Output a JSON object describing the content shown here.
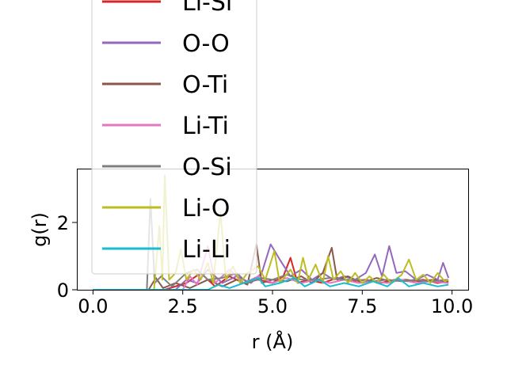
{
  "chart_data": {
    "type": "line",
    "xlabel": "r (Å)",
    "ylabel": "g(r)",
    "xlim": [
      -0.45,
      10.45
    ],
    "ylim": [
      0,
      3.6
    ],
    "x_ticks": [
      "0.0",
      "2.5",
      "5.0",
      "7.5",
      "10.0"
    ],
    "x_tick_values": [
      0,
      2.5,
      5,
      7.5,
      10
    ],
    "y_ticks": [
      "0",
      "2"
    ],
    "y_tick_values": [
      0,
      2
    ],
    "grid": false,
    "legend_position": "upper-left, overlapping plot and extending above figure",
    "legend_entries": [
      "Li-Si",
      "O-O",
      "O-Ti",
      "Li-Ti",
      "O-Si",
      "Li-O",
      "Li-Li"
    ],
    "series": [
      {
        "name": "Li-Si",
        "color": "#d62728",
        "points": [
          [
            0,
            0
          ],
          [
            1.4,
            0
          ],
          [
            2.0,
            0
          ],
          [
            2.6,
            0.2
          ],
          [
            3.0,
            0.5
          ],
          [
            3.4,
            0.1
          ],
          [
            3.8,
            0.4
          ],
          [
            4.2,
            0.2
          ],
          [
            4.6,
            0.3
          ],
          [
            5.0,
            0.2
          ],
          [
            5.3,
            0.4
          ],
          [
            5.5,
            0.95
          ],
          [
            5.7,
            0.2
          ],
          [
            6.0,
            0.3
          ],
          [
            6.4,
            0.2
          ],
          [
            6.8,
            0.35
          ],
          [
            7.2,
            0.25
          ],
          [
            7.6,
            0.3
          ],
          [
            8.0,
            0.2
          ],
          [
            8.4,
            0.3
          ],
          [
            8.8,
            0.25
          ],
          [
            9.2,
            0.3
          ],
          [
            9.6,
            0.2
          ],
          [
            9.9,
            0.25
          ]
        ]
      },
      {
        "name": "O-O",
        "color": "#9467bd",
        "points": [
          [
            0,
            0
          ],
          [
            1.8,
            0
          ],
          [
            2.3,
            0
          ],
          [
            2.6,
            0.3
          ],
          [
            2.9,
            0.2
          ],
          [
            3.2,
            0.6
          ],
          [
            3.6,
            0.2
          ],
          [
            4.0,
            0.4
          ],
          [
            4.4,
            0.2
          ],
          [
            4.7,
            0.5
          ],
          [
            4.95,
            1.35
          ],
          [
            5.2,
            0.9
          ],
          [
            5.5,
            0.4
          ],
          [
            5.8,
            0.6
          ],
          [
            6.1,
            0.3
          ],
          [
            6.4,
            0.5
          ],
          [
            6.7,
            0.3
          ],
          [
            7.0,
            0.4
          ],
          [
            7.3,
            0.3
          ],
          [
            7.6,
            0.5
          ],
          [
            7.85,
            1.05
          ],
          [
            8.05,
            0.4
          ],
          [
            8.25,
            1.3
          ],
          [
            8.45,
            0.5
          ],
          [
            8.7,
            0.55
          ],
          [
            9.0,
            0.3
          ],
          [
            9.3,
            0.45
          ],
          [
            9.6,
            0.3
          ],
          [
            9.75,
            0.8
          ],
          [
            9.9,
            0.35
          ]
        ]
      },
      {
        "name": "O-Ti",
        "color": "#8c564b",
        "points": [
          [
            0,
            0
          ],
          [
            1.55,
            0
          ],
          [
            1.75,
            0.35
          ],
          [
            1.95,
            0.05
          ],
          [
            2.3,
            0.2
          ],
          [
            2.7,
            0.05
          ],
          [
            3.2,
            0.3
          ],
          [
            3.6,
            0.1
          ],
          [
            4.0,
            0.3
          ],
          [
            4.3,
            0.15
          ],
          [
            4.55,
            1.35
          ],
          [
            4.7,
            0.2
          ],
          [
            5.0,
            0.3
          ],
          [
            5.4,
            0.25
          ],
          [
            5.8,
            0.4
          ],
          [
            6.1,
            0.2
          ],
          [
            6.4,
            0.5
          ],
          [
            6.65,
            1.25
          ],
          [
            6.8,
            0.3
          ],
          [
            7.1,
            0.4
          ],
          [
            7.5,
            0.2
          ],
          [
            7.9,
            0.35
          ],
          [
            8.3,
            0.25
          ],
          [
            8.7,
            0.3
          ],
          [
            9.1,
            0.25
          ],
          [
            9.5,
            0.3
          ],
          [
            9.9,
            0.2
          ]
        ]
      },
      {
        "name": "Li-Ti",
        "color": "#e377c2",
        "points": [
          [
            0,
            0
          ],
          [
            2.5,
            0
          ],
          [
            2.7,
            0.4
          ],
          [
            2.9,
            0.15
          ],
          [
            3.2,
            1.3
          ],
          [
            3.4,
            0.2
          ],
          [
            3.8,
            0.6
          ],
          [
            4.2,
            0.2
          ],
          [
            4.6,
            0.4
          ],
          [
            5.0,
            0.2
          ],
          [
            5.4,
            0.35
          ],
          [
            5.8,
            0.2
          ],
          [
            6.2,
            0.3
          ],
          [
            6.6,
            0.2
          ],
          [
            7.0,
            0.3
          ],
          [
            7.4,
            0.2
          ],
          [
            7.8,
            0.25
          ],
          [
            8.2,
            0.2
          ],
          [
            8.6,
            0.3
          ],
          [
            9.0,
            0.2
          ],
          [
            9.4,
            0.25
          ],
          [
            9.9,
            0.2
          ]
        ]
      },
      {
        "name": "O-Si",
        "color": "#7f7f7f",
        "points": [
          [
            0,
            0
          ],
          [
            1.5,
            0
          ],
          [
            1.6,
            2.7
          ],
          [
            1.72,
            0.2
          ],
          [
            1.9,
            0.4
          ],
          [
            2.2,
            0.1
          ],
          [
            2.6,
            0.5
          ],
          [
            2.9,
            0.6
          ],
          [
            3.2,
            0.3
          ],
          [
            3.6,
            0.35
          ],
          [
            4.0,
            0.5
          ],
          [
            4.3,
            0.2
          ],
          [
            4.7,
            0.35
          ],
          [
            5.0,
            0.3
          ],
          [
            5.4,
            0.45
          ],
          [
            5.8,
            0.3
          ],
          [
            6.2,
            0.3
          ],
          [
            6.6,
            0.35
          ],
          [
            7.0,
            0.3
          ],
          [
            7.4,
            0.3
          ],
          [
            7.8,
            0.25
          ],
          [
            8.2,
            0.3
          ],
          [
            8.6,
            0.25
          ],
          [
            9.0,
            0.3
          ],
          [
            9.4,
            0.25
          ],
          [
            9.9,
            0.3
          ]
        ]
      },
      {
        "name": "Li-O",
        "color": "#bcbd22",
        "points": [
          [
            0,
            0
          ],
          [
            1.7,
            0
          ],
          [
            1.85,
            1.9
          ],
          [
            1.93,
            0.3
          ],
          [
            2.0,
            3.4
          ],
          [
            2.12,
            0.3
          ],
          [
            2.3,
            0.5
          ],
          [
            2.45,
            1.2
          ],
          [
            2.6,
            0.3
          ],
          [
            2.8,
            0.6
          ],
          [
            3.0,
            0.3
          ],
          [
            3.2,
            0.8
          ],
          [
            3.35,
            0.2
          ],
          [
            3.55,
            2.3
          ],
          [
            3.7,
            0.3
          ],
          [
            3.9,
            0.7
          ],
          [
            4.1,
            0.2
          ],
          [
            4.3,
            0.5
          ],
          [
            4.6,
            0.7
          ],
          [
            4.8,
            0.3
          ],
          [
            5.05,
            1.15
          ],
          [
            5.2,
            0.2
          ],
          [
            5.5,
            0.6
          ],
          [
            5.7,
            0.2
          ],
          [
            5.85,
            0.95
          ],
          [
            6.0,
            0.3
          ],
          [
            6.2,
            0.75
          ],
          [
            6.4,
            0.2
          ],
          [
            6.55,
            1.0
          ],
          [
            6.7,
            0.3
          ],
          [
            6.9,
            0.55
          ],
          [
            7.1,
            0.2
          ],
          [
            7.3,
            0.5
          ],
          [
            7.5,
            0.2
          ],
          [
            7.7,
            0.4
          ],
          [
            7.9,
            0.2
          ],
          [
            8.1,
            0.45
          ],
          [
            8.3,
            0.2
          ],
          [
            8.6,
            0.45
          ],
          [
            8.8,
            0.9
          ],
          [
            9.0,
            0.3
          ],
          [
            9.2,
            0.45
          ],
          [
            9.4,
            0.2
          ],
          [
            9.6,
            0.5
          ],
          [
            9.8,
            0.25
          ],
          [
            9.9,
            0.3
          ]
        ]
      },
      {
        "name": "Li-Li",
        "color": "#17becf",
        "points": [
          [
            0,
            0
          ],
          [
            3.2,
            0
          ],
          [
            3.5,
            0.15
          ],
          [
            3.8,
            0.05
          ],
          [
            4.2,
            0.2
          ],
          [
            4.6,
            0.35
          ],
          [
            4.8,
            0.1
          ],
          [
            5.2,
            0.2
          ],
          [
            5.6,
            0.35
          ],
          [
            5.9,
            0.1
          ],
          [
            6.3,
            0.3
          ],
          [
            6.6,
            0.1
          ],
          [
            7.0,
            0.2
          ],
          [
            7.4,
            0.1
          ],
          [
            7.8,
            0.25
          ],
          [
            8.2,
            0.1
          ],
          [
            8.5,
            0.35
          ],
          [
            8.8,
            0.1
          ],
          [
            9.2,
            0.2
          ],
          [
            9.6,
            0.1
          ],
          [
            9.9,
            0.15
          ]
        ]
      }
    ]
  }
}
